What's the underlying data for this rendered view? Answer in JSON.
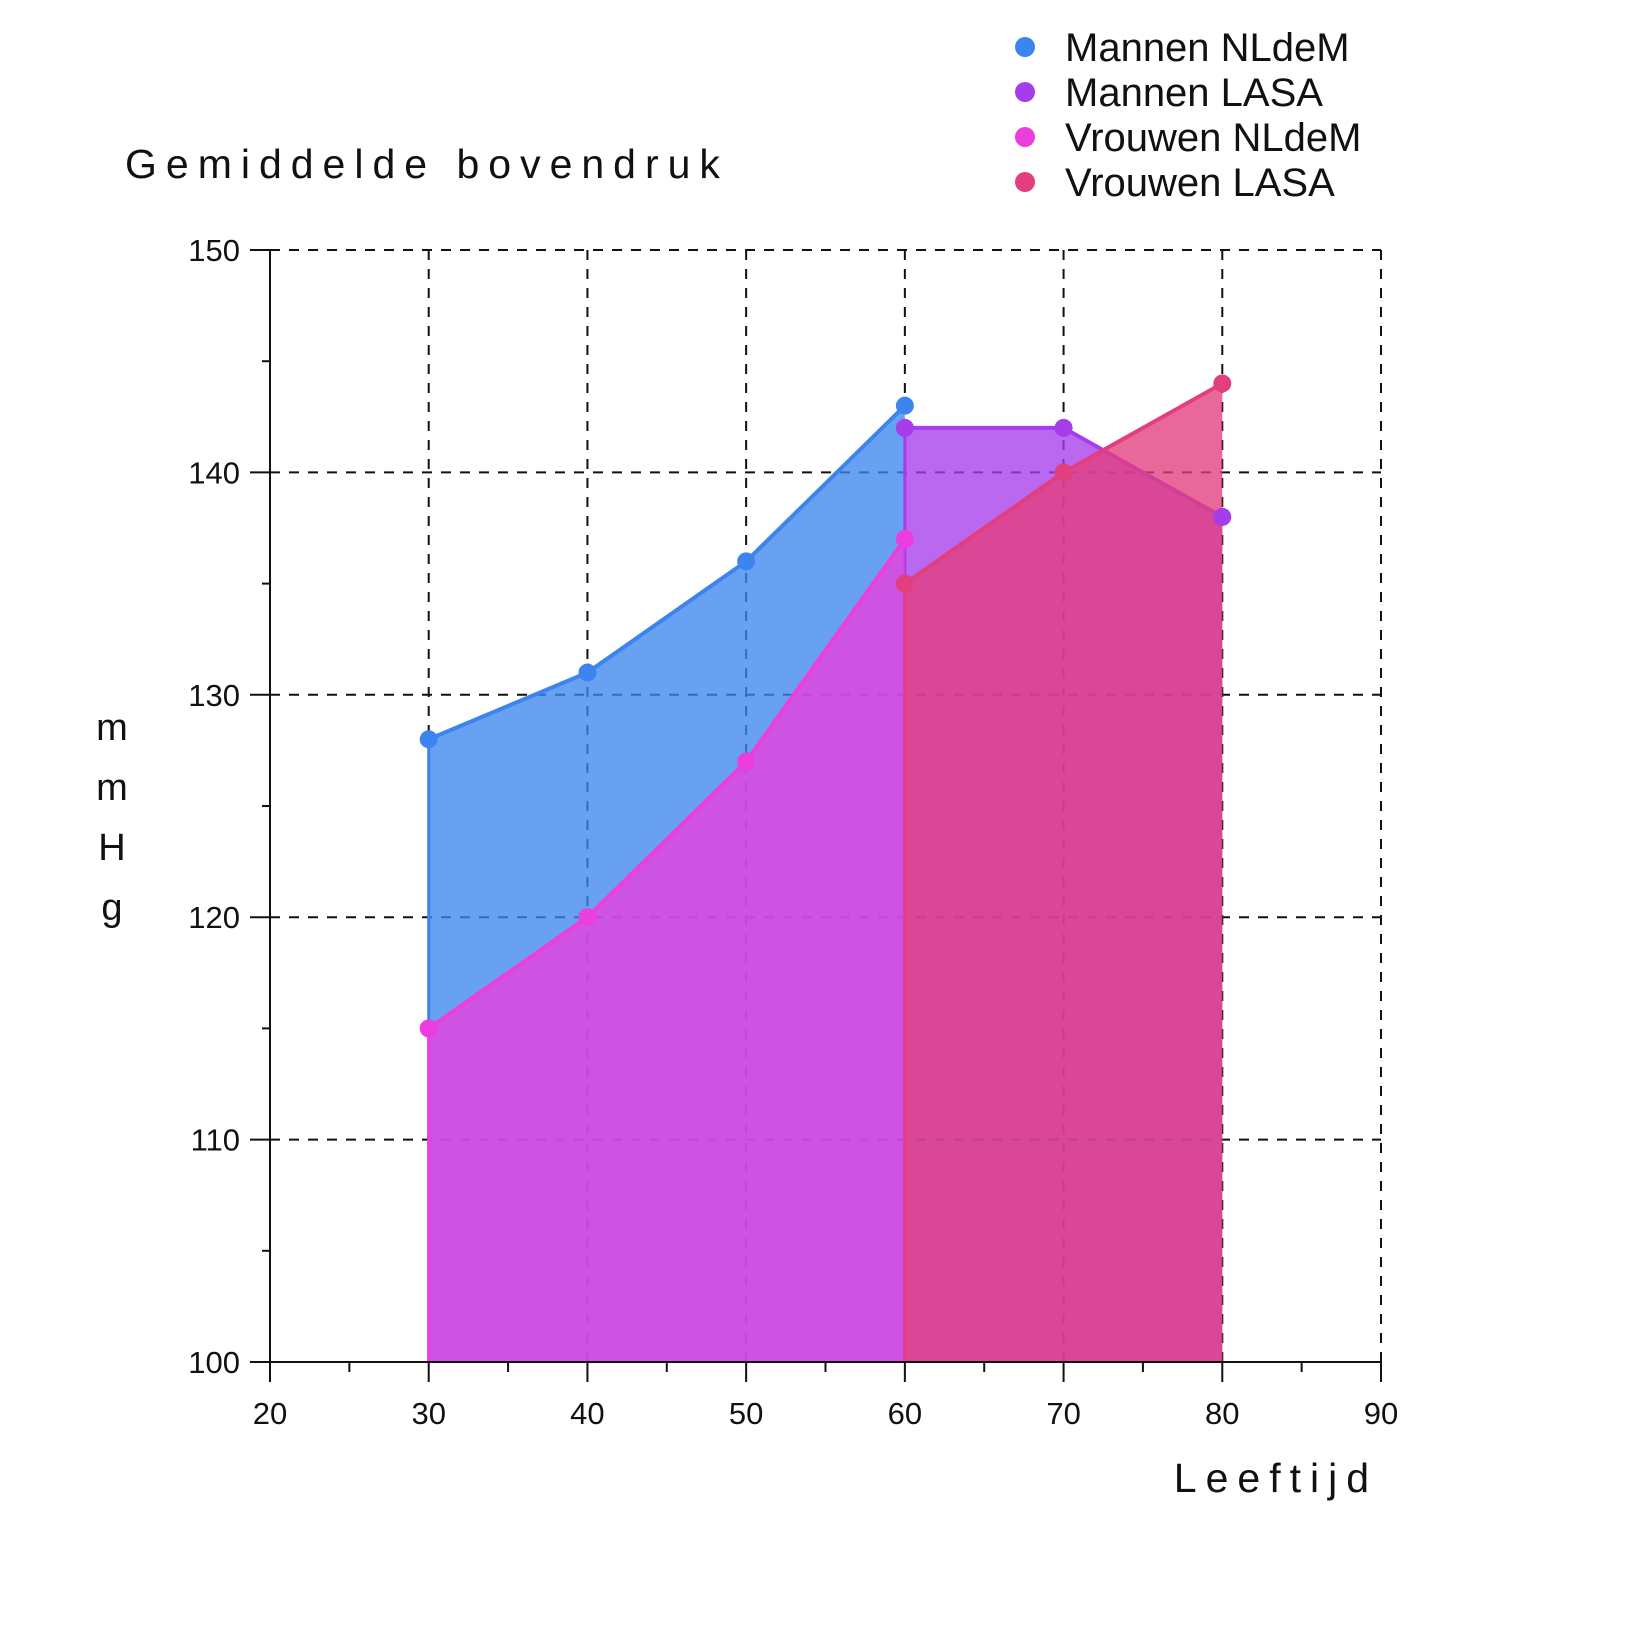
{
  "chart_data": {
    "type": "area",
    "title": "Gemiddelde bovendruk",
    "xlabel": "Leeftijd",
    "ylabel": "mmHg",
    "xlim": [
      20,
      90
    ],
    "ylim": [
      100,
      150
    ],
    "x_ticks": [
      20,
      30,
      40,
      50,
      60,
      70,
      80,
      90
    ],
    "x_tick_labels": [
      "20",
      "30",
      "40",
      "50",
      "60",
      "70",
      "80",
      "90"
    ],
    "y_ticks": [
      100,
      110,
      120,
      130,
      140,
      150
    ],
    "y_tick_labels": [
      "100",
      "110",
      "120",
      "130",
      "140",
      "150"
    ],
    "grid": true,
    "legend_position": "top-right",
    "series": [
      {
        "name": "Mannen NLdeM",
        "color": "#3d85ee",
        "x": [
          30,
          40,
          50,
          60
        ],
        "y": [
          128,
          131,
          136,
          143
        ]
      },
      {
        "name": "Mannen LASA",
        "color": "#a53deb",
        "x": [
          60,
          70,
          80
        ],
        "y": [
          142,
          142,
          138
        ]
      },
      {
        "name": "Vrouwen NLdeM",
        "color": "#ec3ddf",
        "x": [
          30,
          40,
          50,
          60
        ],
        "y": [
          115,
          120,
          127,
          137
        ]
      },
      {
        "name": "Vrouwen LASA",
        "color": "#e33e7e",
        "x": [
          60,
          70,
          80
        ],
        "y": [
          135,
          140,
          144
        ]
      }
    ]
  }
}
